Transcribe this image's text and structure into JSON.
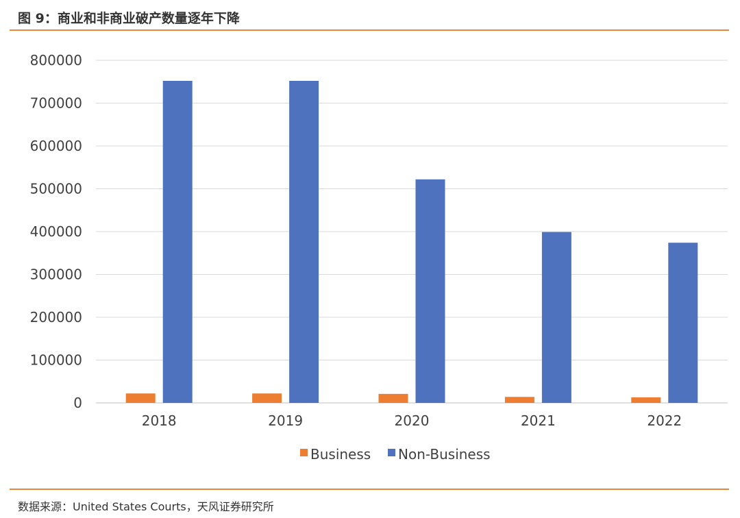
{
  "figure": {
    "title": "图 9：商业和非商业破产数量逐年下降",
    "source": "数据来源：United States Courts，天风证券研究所"
  },
  "chart_data": {
    "type": "bar",
    "categories": [
      "2018",
      "2019",
      "2020",
      "2021",
      "2022"
    ],
    "series": [
      {
        "name": "Business",
        "color": "#ed7d31",
        "values": [
          22000,
          22000,
          21000,
          14000,
          13000
        ]
      },
      {
        "name": "Non-Business",
        "color": "#4f72be",
        "values": [
          752000,
          752000,
          522000,
          399000,
          374000
        ]
      }
    ],
    "yticks": [
      "0",
      "100000",
      "200000",
      "300000",
      "400000",
      "500000",
      "600000",
      "700000",
      "800000"
    ],
    "ylim": [
      0,
      800000
    ],
    "grid": true,
    "legend_position": "bottom"
  }
}
